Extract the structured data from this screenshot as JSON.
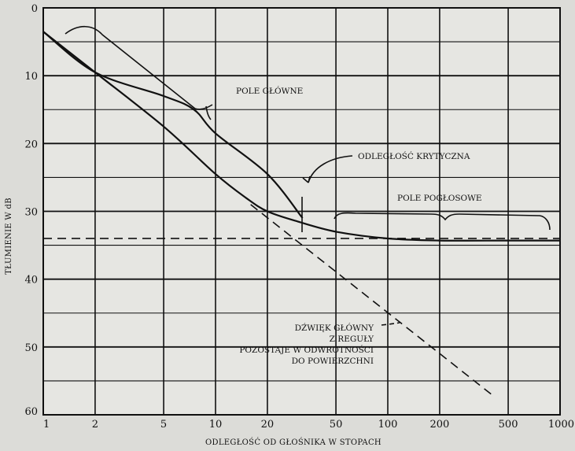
{
  "chart_data": {
    "type": "line",
    "title": "",
    "xlabel": "ODLEGŁOŚĆ OD GŁOŚNIKA W STOPACH",
    "ylabel": "TŁUMIENIE W dB",
    "x_scale": "log",
    "xlim": [
      1,
      1000
    ],
    "ylim": [
      0,
      60
    ],
    "y_inverted": true,
    "grid": true,
    "x_ticks": [
      1,
      2,
      5,
      10,
      20,
      50,
      100,
      200,
      500,
      1000
    ],
    "x_tick_labels": [
      "1",
      "2",
      "5",
      "10",
      "20",
      "50",
      "100",
      "200",
      "500",
      "1000"
    ],
    "y_ticks": [
      0,
      10,
      20,
      30,
      40,
      50,
      60
    ],
    "y_tick_labels": [
      "0",
      "10",
      "20",
      "30",
      "40",
      "50",
      "60"
    ],
    "series": [
      {
        "style": "solid",
        "x": [
          1,
          2,
          5,
          10,
          15,
          20,
          30,
          50,
          100,
          200,
          500,
          1000
        ],
        "y": [
          3.5,
          9.5,
          17.5,
          24.5,
          28,
          30,
          31.5,
          33,
          34,
          34.3,
          34.3,
          34.3
        ]
      },
      {
        "style": "solid",
        "x": [
          1,
          2,
          5,
          7.5,
          10,
          20,
          32
        ],
        "y": [
          3.5,
          9.5,
          13,
          15,
          18.5,
          24.5,
          31
        ]
      },
      {
        "style": "dashed",
        "x": [
          1,
          1000
        ],
        "y": [
          34,
          34
        ]
      },
      {
        "style": "dashed",
        "x": [
          16,
          400
        ],
        "y": [
          29,
          57
        ]
      }
    ],
    "annotations": [
      {
        "id": "pole-glowne",
        "lines": [
          "POLE GŁÓWNE"
        ]
      },
      {
        "id": "odleglosc-krytyczna",
        "lines": [
          "ODLEGŁOŚĆ KRYTYCZNA"
        ]
      },
      {
        "id": "pole-poglosowe",
        "lines": [
          "POLE POGŁOSOWE"
        ]
      },
      {
        "id": "dzwiek-glowny",
        "lines": [
          "DŹWIĘK GŁÓWNY",
          "Z REGUŁY",
          "POZOSTAJE W ODWROTNOŚCI",
          "DO POWIERZCHNI"
        ]
      }
    ],
    "colors": {
      "background": "#dcdcd8",
      "plot": "#e6e6e2",
      "ink": "#111111"
    }
  }
}
